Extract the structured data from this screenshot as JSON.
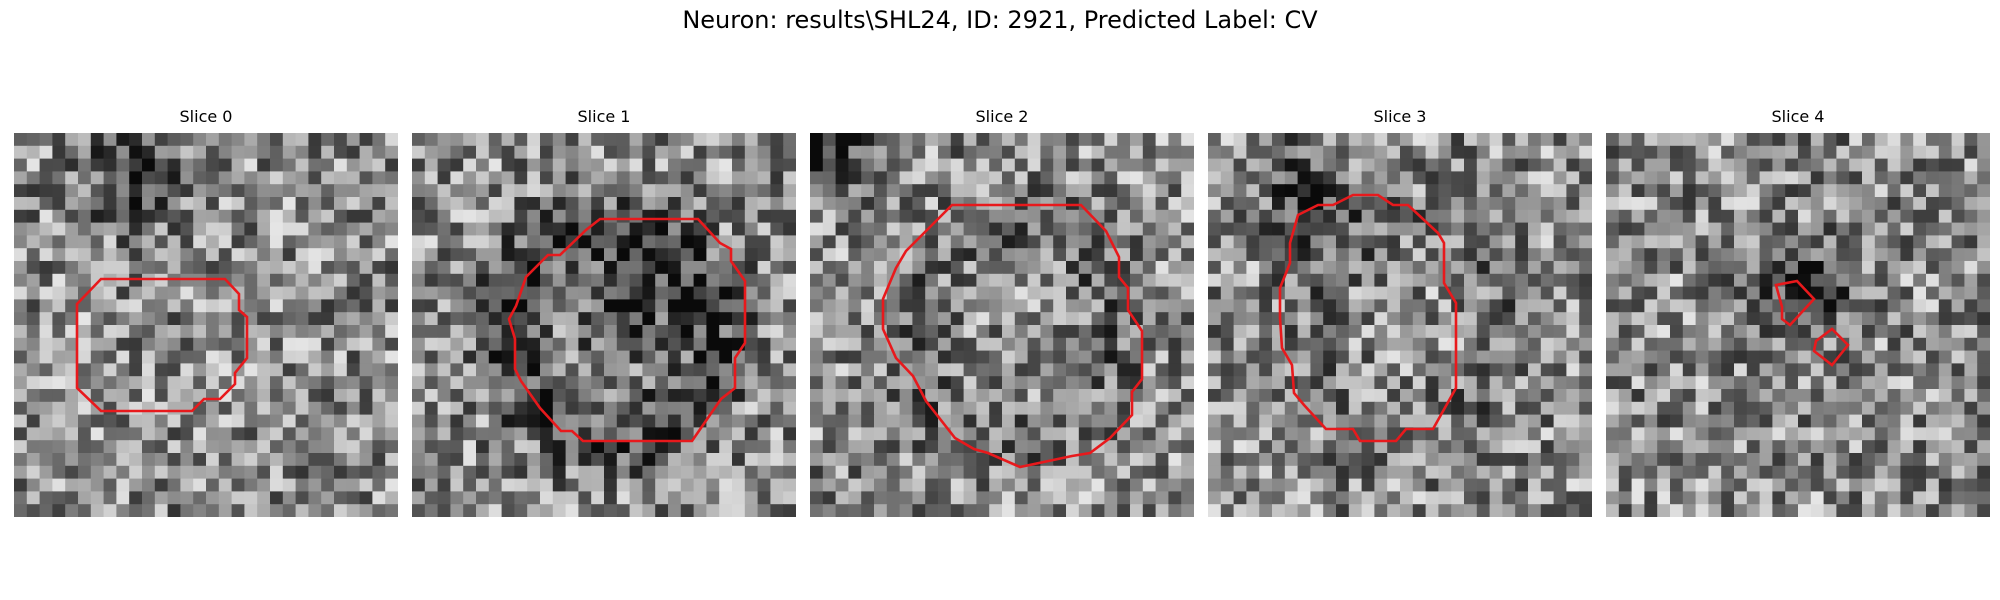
{
  "figure": {
    "title": "Neuron: results\\SHL24, ID: 2921, Predicted Label: CV"
  },
  "contour_color": "#e8191c",
  "panels": [
    {
      "title": "Slice 0",
      "seed": 11,
      "dark_ring": 0.0,
      "dark_blob": [
        0.3,
        0.1
      ]
    },
    {
      "title": "Slice 1",
      "seed": 23,
      "dark_ring": 0.55,
      "dark_blob": [
        0.55,
        0.45
      ]
    },
    {
      "title": "Slice 2",
      "seed": 37,
      "dark_ring": 0.25,
      "dark_blob": [
        0.0,
        0.0
      ]
    },
    {
      "title": "Slice 3",
      "seed": 41,
      "dark_ring": 0.2,
      "dark_blob": [
        0.25,
        0.15
      ]
    },
    {
      "title": "Slice 4",
      "seed": 59,
      "dark_ring": 0.0,
      "dark_blob": [
        0.5,
        0.4
      ]
    }
  ]
}
